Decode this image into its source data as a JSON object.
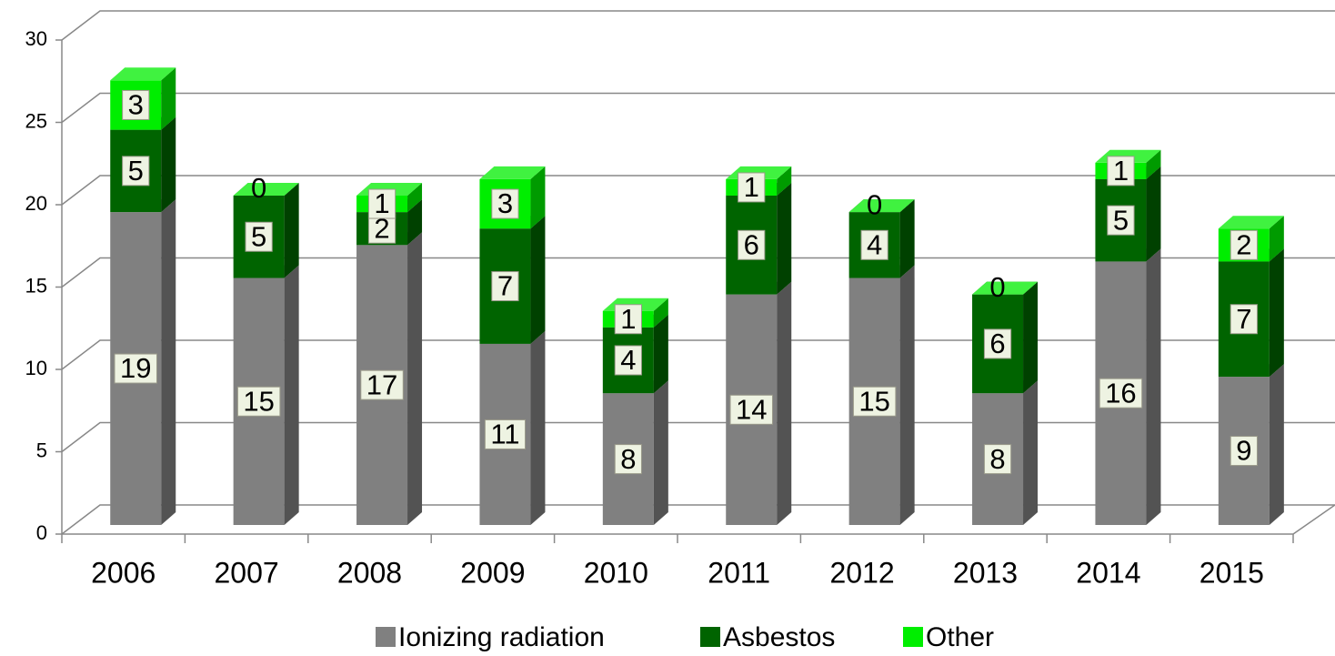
{
  "chart_data": {
    "type": "bar3d_stacked",
    "categories": [
      "2006",
      "2007",
      "2008",
      "2009",
      "2010",
      "2011",
      "2012",
      "2013",
      "2014",
      "2015"
    ],
    "series": [
      {
        "name": "Ionizing radiation",
        "color": "#808080",
        "values": [
          19,
          15,
          17,
          11,
          8,
          14,
          15,
          8,
          16,
          9
        ]
      },
      {
        "name": "Asbestos",
        "color": "#006400",
        "values": [
          5,
          5,
          2,
          7,
          4,
          6,
          4,
          6,
          5,
          7
        ]
      },
      {
        "name": "Other",
        "color": "#00ee00",
        "values": [
          3,
          0,
          1,
          3,
          1,
          1,
          0,
          0,
          1,
          2
        ]
      }
    ],
    "ylim": [
      0,
      30
    ],
    "yticks": [
      0,
      5,
      10,
      15,
      20,
      25,
      30
    ],
    "grid": true,
    "legend": "bottom"
  }
}
